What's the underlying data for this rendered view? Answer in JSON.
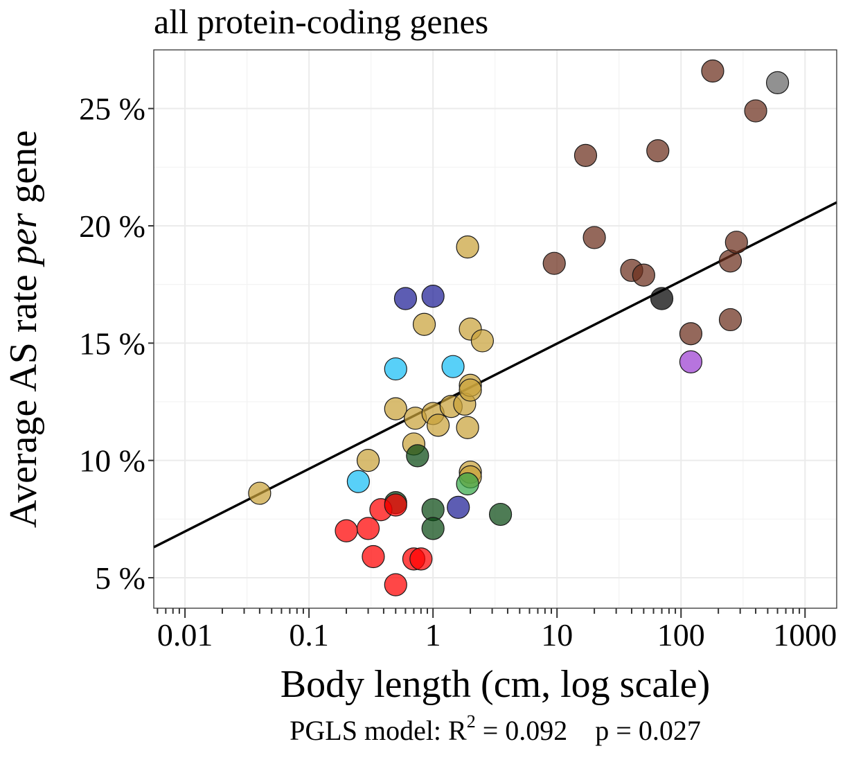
{
  "chart_data": {
    "type": "scatter",
    "title": "all protein-coding genes",
    "xlabel": "Body length (cm, log scale)",
    "ylabel": {
      "prefix": "Average AS rate ",
      "italic": "per",
      "suffix": " gene"
    },
    "caption": {
      "prefix": "PGLS model: R",
      "sup": "2",
      "suffix": " = 0.092    p = 0.027"
    },
    "x_scale": "log10",
    "xlim": [
      0.0056,
      1800
    ],
    "ylim": [
      3.7,
      27.5
    ],
    "x_ticks": [
      0.01,
      0.1,
      1,
      10,
      100,
      1000
    ],
    "x_tick_labels": [
      "0.01",
      "0.1",
      "1",
      "10",
      "100",
      "1000"
    ],
    "y_ticks": [
      5,
      10,
      15,
      20,
      25
    ],
    "y_tick_labels": [
      "5 %",
      "10 %",
      "15 %",
      "20 %",
      "25 %"
    ],
    "grid": true,
    "legend": "none",
    "fit_line": {
      "x": [
        0.0056,
        1800
      ],
      "y": [
        6.3,
        21.0
      ],
      "color": "#000000"
    },
    "series": [
      {
        "color": "#c9a23a",
        "points": [
          [
            0.04,
            8.6
          ],
          [
            0.3,
            10.0
          ],
          [
            0.5,
            12.2
          ],
          [
            0.7,
            10.7
          ],
          [
            0.72,
            11.8
          ],
          [
            0.85,
            15.8
          ],
          [
            1.0,
            12.0
          ],
          [
            1.1,
            11.5
          ],
          [
            1.4,
            12.3
          ],
          [
            1.8,
            12.4
          ],
          [
            1.9,
            19.1
          ],
          [
            1.9,
            11.4
          ],
          [
            2.0,
            15.6
          ],
          [
            2.0,
            13.2
          ],
          [
            2.0,
            13.0
          ],
          [
            2.0,
            9.5
          ],
          [
            2.0,
            9.3
          ],
          [
            2.5,
            15.1
          ]
        ]
      },
      {
        "color": "#6b2e1c",
        "points": [
          [
            9.5,
            18.4
          ],
          [
            17,
            23.0
          ],
          [
            20,
            19.5
          ],
          [
            40,
            18.1
          ],
          [
            50,
            17.9
          ],
          [
            65,
            23.2
          ],
          [
            120,
            15.4
          ],
          [
            180,
            26.6
          ],
          [
            250,
            18.5
          ],
          [
            250,
            16.0
          ],
          [
            280,
            19.3
          ],
          [
            400,
            24.9
          ]
        ]
      },
      {
        "color": "#000000",
        "points": [
          [
            70,
            16.9
          ]
        ]
      },
      {
        "color": "#666666",
        "points": [
          [
            600,
            26.1
          ]
        ]
      },
      {
        "color": "#9b3fd1",
        "points": [
          [
            120,
            14.2
          ]
        ]
      },
      {
        "color": "#1e1e96",
        "points": [
          [
            0.6,
            16.9
          ],
          [
            1.0,
            17.0
          ],
          [
            1.6,
            8.0
          ]
        ]
      },
      {
        "color": "#17bef5",
        "points": [
          [
            0.25,
            9.1
          ],
          [
            0.5,
            13.9
          ],
          [
            1.45,
            14.0
          ]
        ]
      },
      {
        "color": "#0a4a14",
        "points": [
          [
            0.5,
            8.2
          ],
          [
            0.75,
            10.2
          ],
          [
            1.0,
            7.9
          ],
          [
            1.0,
            7.1
          ],
          [
            3.5,
            7.7
          ]
        ]
      },
      {
        "color": "#38a84a",
        "points": [
          [
            1.9,
            9.0
          ]
        ]
      },
      {
        "color": "#ff0000",
        "points": [
          [
            0.2,
            7.0
          ],
          [
            0.3,
            7.1
          ],
          [
            0.33,
            5.9
          ],
          [
            0.38,
            7.9
          ],
          [
            0.5,
            8.1
          ],
          [
            0.5,
            4.7
          ],
          [
            0.7,
            5.8
          ],
          [
            0.8,
            5.8
          ]
        ]
      }
    ]
  }
}
